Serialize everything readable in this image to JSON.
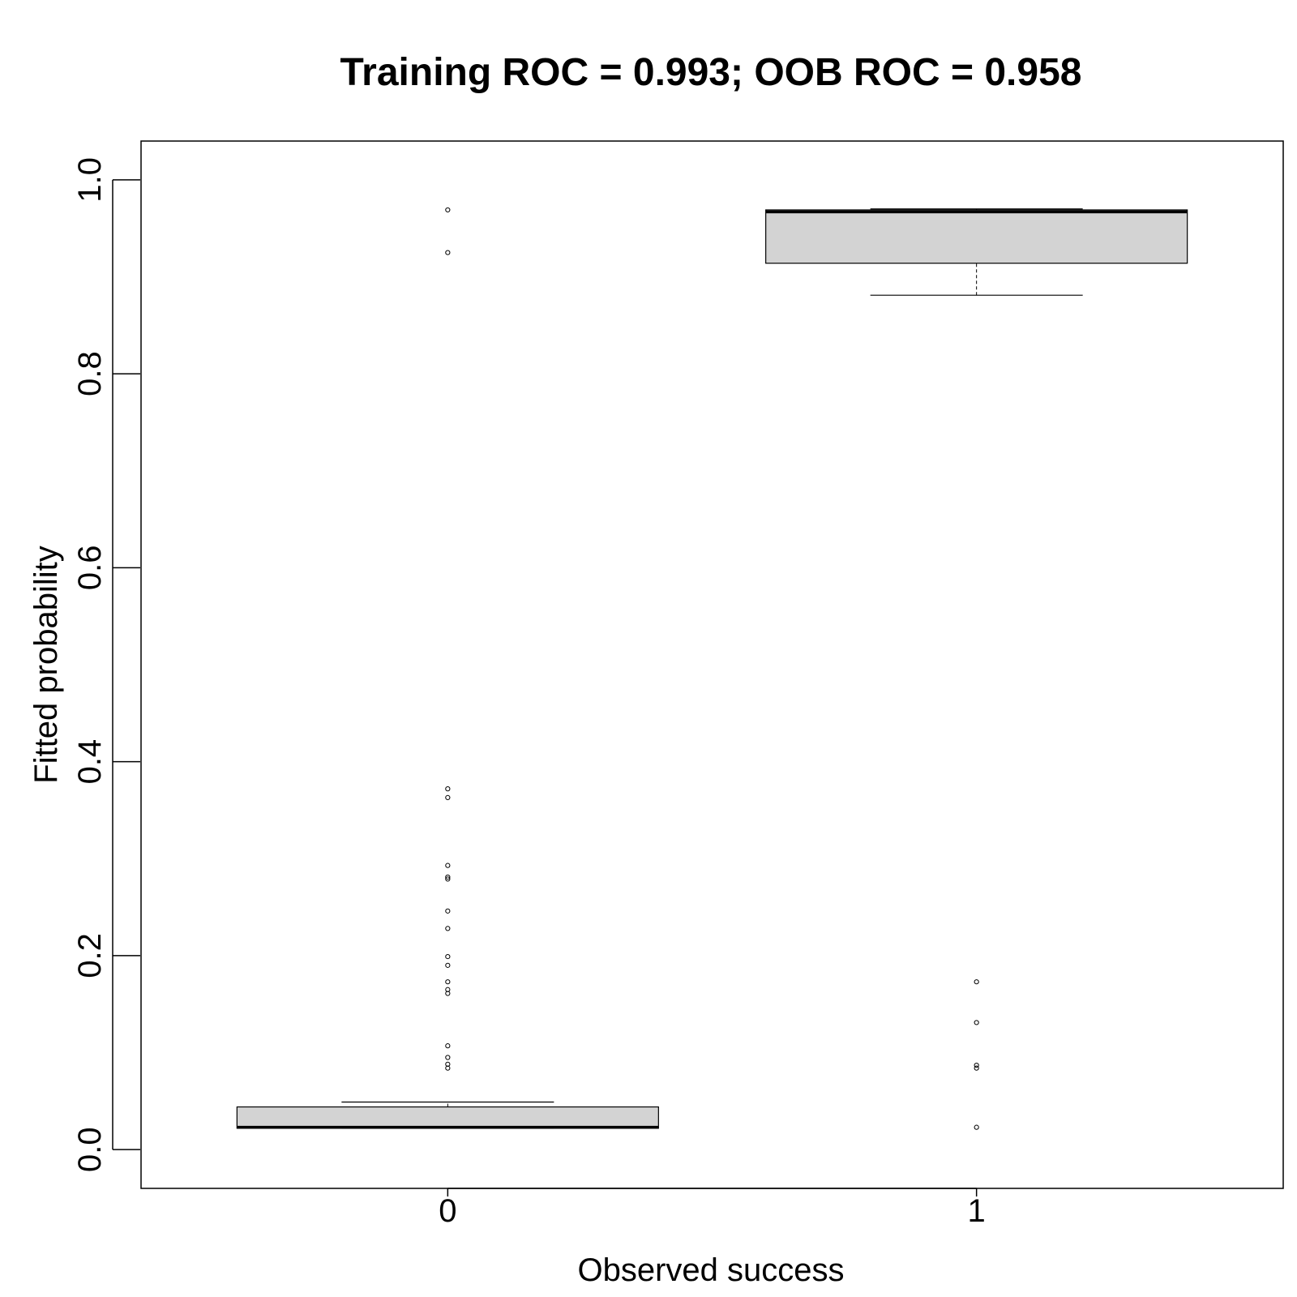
{
  "chart_data": {
    "type": "boxplot",
    "title": "Training ROC = 0.993; OOB ROC = 0.958",
    "xlabel": "Observed success",
    "ylabel": "Fitted probability",
    "ylim": [
      -0.04,
      1.04
    ],
    "yticks": [
      "0.0",
      "0.2",
      "0.4",
      "0.6",
      "0.8",
      "1.0"
    ],
    "categories": [
      "0",
      "1"
    ],
    "box_color": "#d3d3d3",
    "boxes": [
      {
        "category": "0",
        "whisker_low": 0.022,
        "q1": 0.022,
        "median": 0.023,
        "q3": 0.044,
        "whisker_high": 0.049,
        "outliers": [
          0.969,
          0.925,
          0.372,
          0.363,
          0.293,
          0.281,
          0.279,
          0.246,
          0.228,
          0.199,
          0.19,
          0.173,
          0.165,
          0.161,
          0.107,
          0.095,
          0.088,
          0.084
        ]
      },
      {
        "category": "1",
        "whisker_low": 0.881,
        "q1": 0.914,
        "median": 0.967,
        "q3": 0.969,
        "whisker_high": 0.97,
        "outliers": [
          0.173,
          0.131,
          0.087,
          0.084,
          0.023
        ]
      }
    ]
  }
}
